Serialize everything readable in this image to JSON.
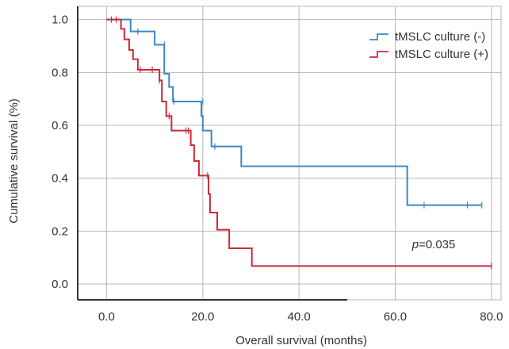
{
  "chart_data": {
    "type": "line",
    "xlabel": "Overall survival (months)",
    "ylabel": "Cumulative survival (%)",
    "xlim": [
      -6,
      82
    ],
    "ylim": [
      -0.06,
      1.05
    ],
    "xticks": [
      0,
      20,
      40,
      60,
      80
    ],
    "xtick_labels": [
      "0.0",
      "20.0",
      "40.0",
      "60.0",
      "80.0"
    ],
    "yticks": [
      0,
      0.2,
      0.4,
      0.6,
      0.8,
      1.0
    ],
    "ytick_labels": [
      "0.0",
      "0.2",
      "0.4",
      "0.6",
      "0.8",
      "1.0"
    ],
    "grid": true,
    "legend_position": "top-right",
    "annotation": {
      "italic": "p",
      "rest": "=0.035",
      "x": 68,
      "y": 0.135
    },
    "series": [
      {
        "name": "tMSLC culture (-)",
        "color": "#3d87c5",
        "steps": [
          [
            0,
            1.0
          ],
          [
            5,
            0.955
          ],
          [
            10,
            0.905
          ],
          [
            12,
            0.795
          ],
          [
            13,
            0.745
          ],
          [
            13.8,
            0.69
          ],
          [
            19.7,
            0.635
          ],
          [
            20,
            0.58
          ],
          [
            21.8,
            0.52
          ],
          [
            28,
            0.445
          ],
          [
            62.5,
            0.298
          ],
          [
            78,
            0.298
          ]
        ],
        "censors": [
          [
            6.5,
            0.955
          ],
          [
            12,
            0.905
          ],
          [
            14,
            0.69
          ],
          [
            20,
            0.69
          ],
          [
            22.5,
            0.52
          ],
          [
            66,
            0.298
          ],
          [
            75,
            0.298
          ],
          [
            78,
            0.298
          ]
        ]
      },
      {
        "name": "tMSLC culture (+)",
        "color": "#cc2a3a",
        "steps": [
          [
            0,
            1.0
          ],
          [
            3,
            0.965
          ],
          [
            3.7,
            0.925
          ],
          [
            4.7,
            0.885
          ],
          [
            5.5,
            0.85
          ],
          [
            6.5,
            0.81
          ],
          [
            11,
            0.77
          ],
          [
            11.5,
            0.69
          ],
          [
            12.4,
            0.635
          ],
          [
            13.5,
            0.58
          ],
          [
            17.5,
            0.525
          ],
          [
            18.2,
            0.465
          ],
          [
            19.2,
            0.41
          ],
          [
            21.2,
            0.34
          ],
          [
            21.5,
            0.27
          ],
          [
            23,
            0.205
          ],
          [
            25.5,
            0.135
          ],
          [
            30.2,
            0.068
          ],
          [
            80,
            0.068
          ]
        ],
        "censors": [
          [
            1,
            1.0
          ],
          [
            2,
            1.0
          ],
          [
            7,
            0.81
          ],
          [
            9.5,
            0.81
          ],
          [
            11,
            0.77
          ],
          [
            13,
            0.635
          ],
          [
            16.5,
            0.58
          ],
          [
            17,
            0.58
          ],
          [
            21,
            0.41
          ],
          [
            80,
            0.068
          ]
        ]
      }
    ]
  }
}
